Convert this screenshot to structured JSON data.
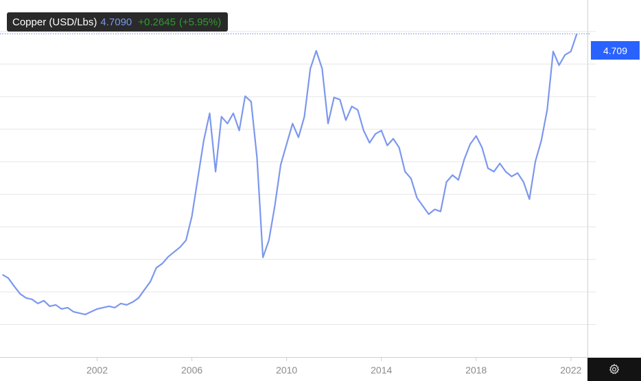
{
  "colors": {
    "line": "#7b97ee",
    "grid": "#e6e6e6",
    "axis": "#cfcfcf",
    "tick_text": "#8a8a8a",
    "price_tag_bg": "#2962ff",
    "change_positive": "#2e9d2e",
    "price_text": "#7b97ee"
  },
  "tooltip": {
    "name": "Copper (USD/Lbs)",
    "price": "4.7090",
    "change": "+0.2645",
    "change_pct": "(+5.95%)"
  },
  "price_tag": {
    "value": "4.709"
  },
  "settings_icon": "gear-icon",
  "chart_data": {
    "type": "line",
    "title": "",
    "xlabel": "",
    "ylabel": "",
    "series": [
      {
        "values": [
          [
            1998.0,
            1.2
          ],
          [
            1998.25,
            1.15
          ],
          [
            1998.5,
            1.03
          ],
          [
            1998.75,
            0.92
          ],
          [
            1999.0,
            0.86
          ],
          [
            1999.25,
            0.84
          ],
          [
            1999.5,
            0.78
          ],
          [
            1999.75,
            0.82
          ],
          [
            2000.0,
            0.74
          ],
          [
            2000.25,
            0.76
          ],
          [
            2000.5,
            0.7
          ],
          [
            2000.75,
            0.72
          ],
          [
            2001.0,
            0.66
          ],
          [
            2001.25,
            0.64
          ],
          [
            2001.5,
            0.62
          ],
          [
            2001.75,
            0.66
          ],
          [
            2002.0,
            0.7
          ],
          [
            2002.25,
            0.72
          ],
          [
            2002.5,
            0.74
          ],
          [
            2002.75,
            0.72
          ],
          [
            2003.0,
            0.78
          ],
          [
            2003.25,
            0.76
          ],
          [
            2003.5,
            0.8
          ],
          [
            2003.75,
            0.86
          ],
          [
            2004.0,
            0.98
          ],
          [
            2004.25,
            1.1
          ],
          [
            2004.5,
            1.3
          ],
          [
            2004.75,
            1.36
          ],
          [
            2005.0,
            1.46
          ],
          [
            2005.25,
            1.53
          ],
          [
            2005.5,
            1.6
          ],
          [
            2005.75,
            1.7
          ],
          [
            2006.0,
            2.05
          ],
          [
            2006.25,
            2.6
          ],
          [
            2006.5,
            3.15
          ],
          [
            2006.75,
            3.55
          ],
          [
            2007.0,
            2.7
          ],
          [
            2007.25,
            3.5
          ],
          [
            2007.5,
            3.4
          ],
          [
            2007.75,
            3.55
          ],
          [
            2008.0,
            3.3
          ],
          [
            2008.25,
            3.8
          ],
          [
            2008.5,
            3.72
          ],
          [
            2008.75,
            2.9
          ],
          [
            2009.0,
            1.45
          ],
          [
            2009.25,
            1.7
          ],
          [
            2009.5,
            2.2
          ],
          [
            2009.75,
            2.8
          ],
          [
            2010.0,
            3.1
          ],
          [
            2010.25,
            3.4
          ],
          [
            2010.5,
            3.2
          ],
          [
            2010.75,
            3.5
          ],
          [
            2011.0,
            4.2
          ],
          [
            2011.25,
            4.46
          ],
          [
            2011.5,
            4.2
          ],
          [
            2011.75,
            3.4
          ],
          [
            2012.0,
            3.78
          ],
          [
            2012.25,
            3.75
          ],
          [
            2012.5,
            3.45
          ],
          [
            2012.75,
            3.65
          ],
          [
            2013.0,
            3.6
          ],
          [
            2013.25,
            3.3
          ],
          [
            2013.5,
            3.12
          ],
          [
            2013.75,
            3.25
          ],
          [
            2014.0,
            3.3
          ],
          [
            2014.25,
            3.08
          ],
          [
            2014.5,
            3.18
          ],
          [
            2014.75,
            3.05
          ],
          [
            2015.0,
            2.7
          ],
          [
            2015.25,
            2.6
          ],
          [
            2015.5,
            2.32
          ],
          [
            2015.75,
            2.2
          ],
          [
            2016.0,
            2.08
          ],
          [
            2016.25,
            2.15
          ],
          [
            2016.5,
            2.12
          ],
          [
            2016.75,
            2.55
          ],
          [
            2017.0,
            2.65
          ],
          [
            2017.25,
            2.58
          ],
          [
            2017.5,
            2.88
          ],
          [
            2017.75,
            3.1
          ],
          [
            2018.0,
            3.22
          ],
          [
            2018.25,
            3.05
          ],
          [
            2018.5,
            2.75
          ],
          [
            2018.75,
            2.7
          ],
          [
            2019.0,
            2.82
          ],
          [
            2019.25,
            2.7
          ],
          [
            2019.5,
            2.63
          ],
          [
            2019.75,
            2.68
          ],
          [
            2020.0,
            2.55
          ],
          [
            2020.25,
            2.3
          ],
          [
            2020.5,
            2.85
          ],
          [
            2020.75,
            3.15
          ],
          [
            2021.0,
            3.6
          ],
          [
            2021.25,
            4.45
          ],
          [
            2021.5,
            4.25
          ],
          [
            2021.75,
            4.4
          ],
          [
            2022.0,
            4.45
          ],
          [
            2022.25,
            4.709
          ]
        ]
      }
    ],
    "x_ticks": [
      "2002",
      "2006",
      "2010",
      "2014",
      "2018",
      "2022"
    ],
    "x_tick_values": [
      2002,
      2006,
      2010,
      2014,
      2018,
      2022
    ],
    "xlim": [
      1997.9,
      2022.7
    ],
    "ylim": [
      0.0,
      5.2
    ],
    "grid": true,
    "last_value": 4.709
  }
}
